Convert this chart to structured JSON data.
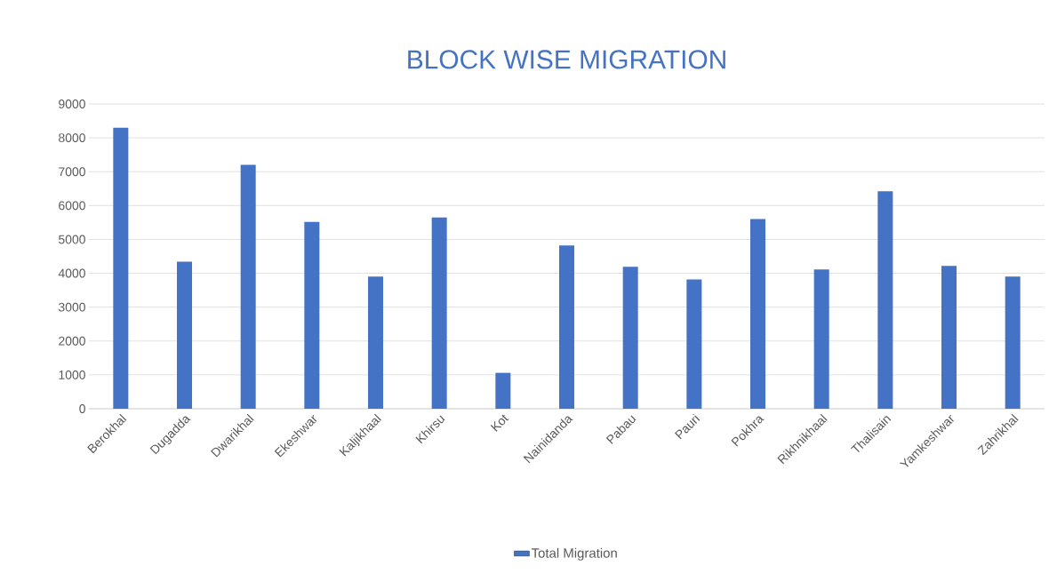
{
  "chart_data": {
    "type": "bar",
    "title": "BLOCK WISE MIGRATION",
    "categories": [
      "Berokhal",
      "Dugadda",
      "Dwarikhal",
      "Ekeshwar",
      "Kaljikhaal",
      "Khirsu",
      "Kot",
      "Nainidanda",
      "Pabau",
      "Pauri",
      "Pokhra",
      "Rikhnikhaal",
      "Thalisain",
      "Yamkeshwar",
      "Zahrikhal"
    ],
    "series": [
      {
        "name": "Total Migration",
        "color": "#4472c4",
        "values": [
          8300,
          4340,
          7200,
          5520,
          3900,
          5650,
          1060,
          4820,
          4190,
          3820,
          5600,
          4110,
          6420,
          4220,
          3900
        ]
      }
    ],
    "ylim": [
      0,
      9000
    ],
    "yticks": [
      0,
      1000,
      2000,
      3000,
      4000,
      5000,
      6000,
      7000,
      8000,
      9000
    ],
    "grid": "y",
    "legend": "bottom"
  }
}
